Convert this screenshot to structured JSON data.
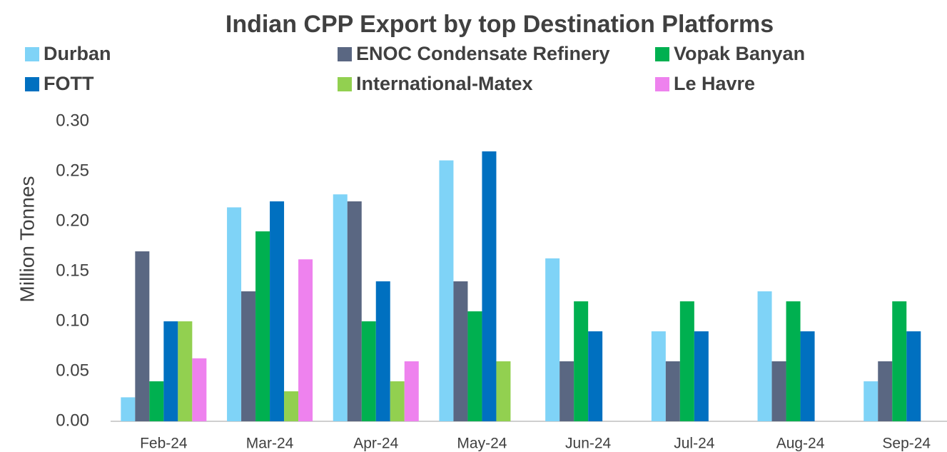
{
  "chart_data": {
    "type": "bar",
    "title": "Indian CPP Export by top Destination Platforms",
    "y_label": "Million Tonnes",
    "categories": [
      "Feb-24",
      "Mar-24",
      "Apr-24",
      "May-24",
      "Jun-24",
      "Jul-24",
      "Aug-24",
      "Sep-24"
    ],
    "series": [
      {
        "name": "Durban",
        "color": "#7fd3f7",
        "values": [
          0.024,
          0.214,
          0.227,
          0.261,
          0.163,
          0.09,
          0.13,
          0.04
        ]
      },
      {
        "name": "ENOC Condensate Refinery",
        "color": "#5a6782",
        "values": [
          0.17,
          0.13,
          0.22,
          0.14,
          0.06,
          0.06,
          0.06,
          0.06
        ]
      },
      {
        "name": "Vopak Banyan",
        "color": "#00b050",
        "values": [
          0.04,
          0.19,
          0.1,
          0.11,
          0.12,
          0.12,
          0.12,
          0.12
        ]
      },
      {
        "name": "FOTT",
        "color": "#0070c0",
        "values": [
          0.1,
          0.22,
          0.14,
          0.27,
          0.09,
          0.09,
          0.09,
          0.09
        ]
      },
      {
        "name": "International-Matex",
        "color": "#92d050",
        "values": [
          0.1,
          0.03,
          0.04,
          0.06,
          null,
          null,
          null,
          null
        ]
      },
      {
        "name": "Le Havre",
        "color": "#ee82ee",
        "values": [
          0.063,
          0.162,
          0.06,
          null,
          null,
          null,
          null,
          null
        ]
      }
    ],
    "ylim": [
      0,
      0.3
    ],
    "yticks": [
      {
        "value": 0,
        "label": "0.00"
      },
      {
        "value": 0.05,
        "label": "0.05"
      },
      {
        "value": 0.1,
        "label": "0.10"
      },
      {
        "value": 0.15,
        "label": "0.15"
      },
      {
        "value": 0.2,
        "label": "0.20"
      },
      {
        "value": 0.25,
        "label": "0.25"
      },
      {
        "value": 0.3,
        "label": "0.30"
      }
    ],
    "grid": false,
    "legend": "top"
  }
}
